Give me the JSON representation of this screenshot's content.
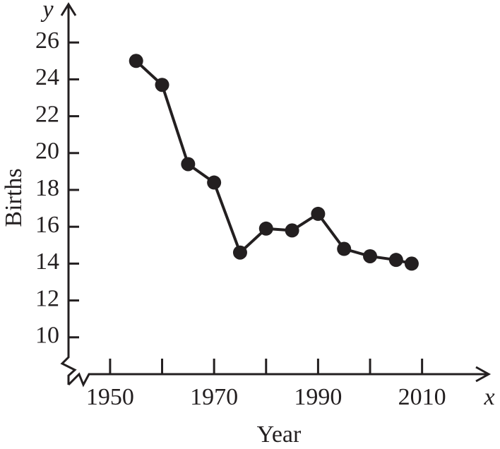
{
  "chart_data": {
    "type": "line",
    "y_letter": "y",
    "x_letter": "x",
    "ylabel": "Births",
    "xlabel": "Year",
    "x": [
      1955,
      1960,
      1965,
      1970,
      1975,
      1980,
      1985,
      1990,
      1995,
      2000,
      2005,
      2008
    ],
    "series": [
      {
        "color": "#231f20",
        "values": [
          25.0,
          23.7,
          19.4,
          18.4,
          14.6,
          15.9,
          15.8,
          16.7,
          14.8,
          14.4,
          14.2,
          14.0
        ]
      }
    ],
    "xlim": [
      1942,
      2022
    ],
    "xticks": [
      1950,
      1970,
      1990,
      2010
    ],
    "xminor_ticks": [
      1960,
      1980,
      2000
    ],
    "ylim": [
      8,
      28
    ],
    "yticks": [
      10,
      12,
      14,
      16,
      18,
      20,
      22,
      24,
      26
    ]
  }
}
